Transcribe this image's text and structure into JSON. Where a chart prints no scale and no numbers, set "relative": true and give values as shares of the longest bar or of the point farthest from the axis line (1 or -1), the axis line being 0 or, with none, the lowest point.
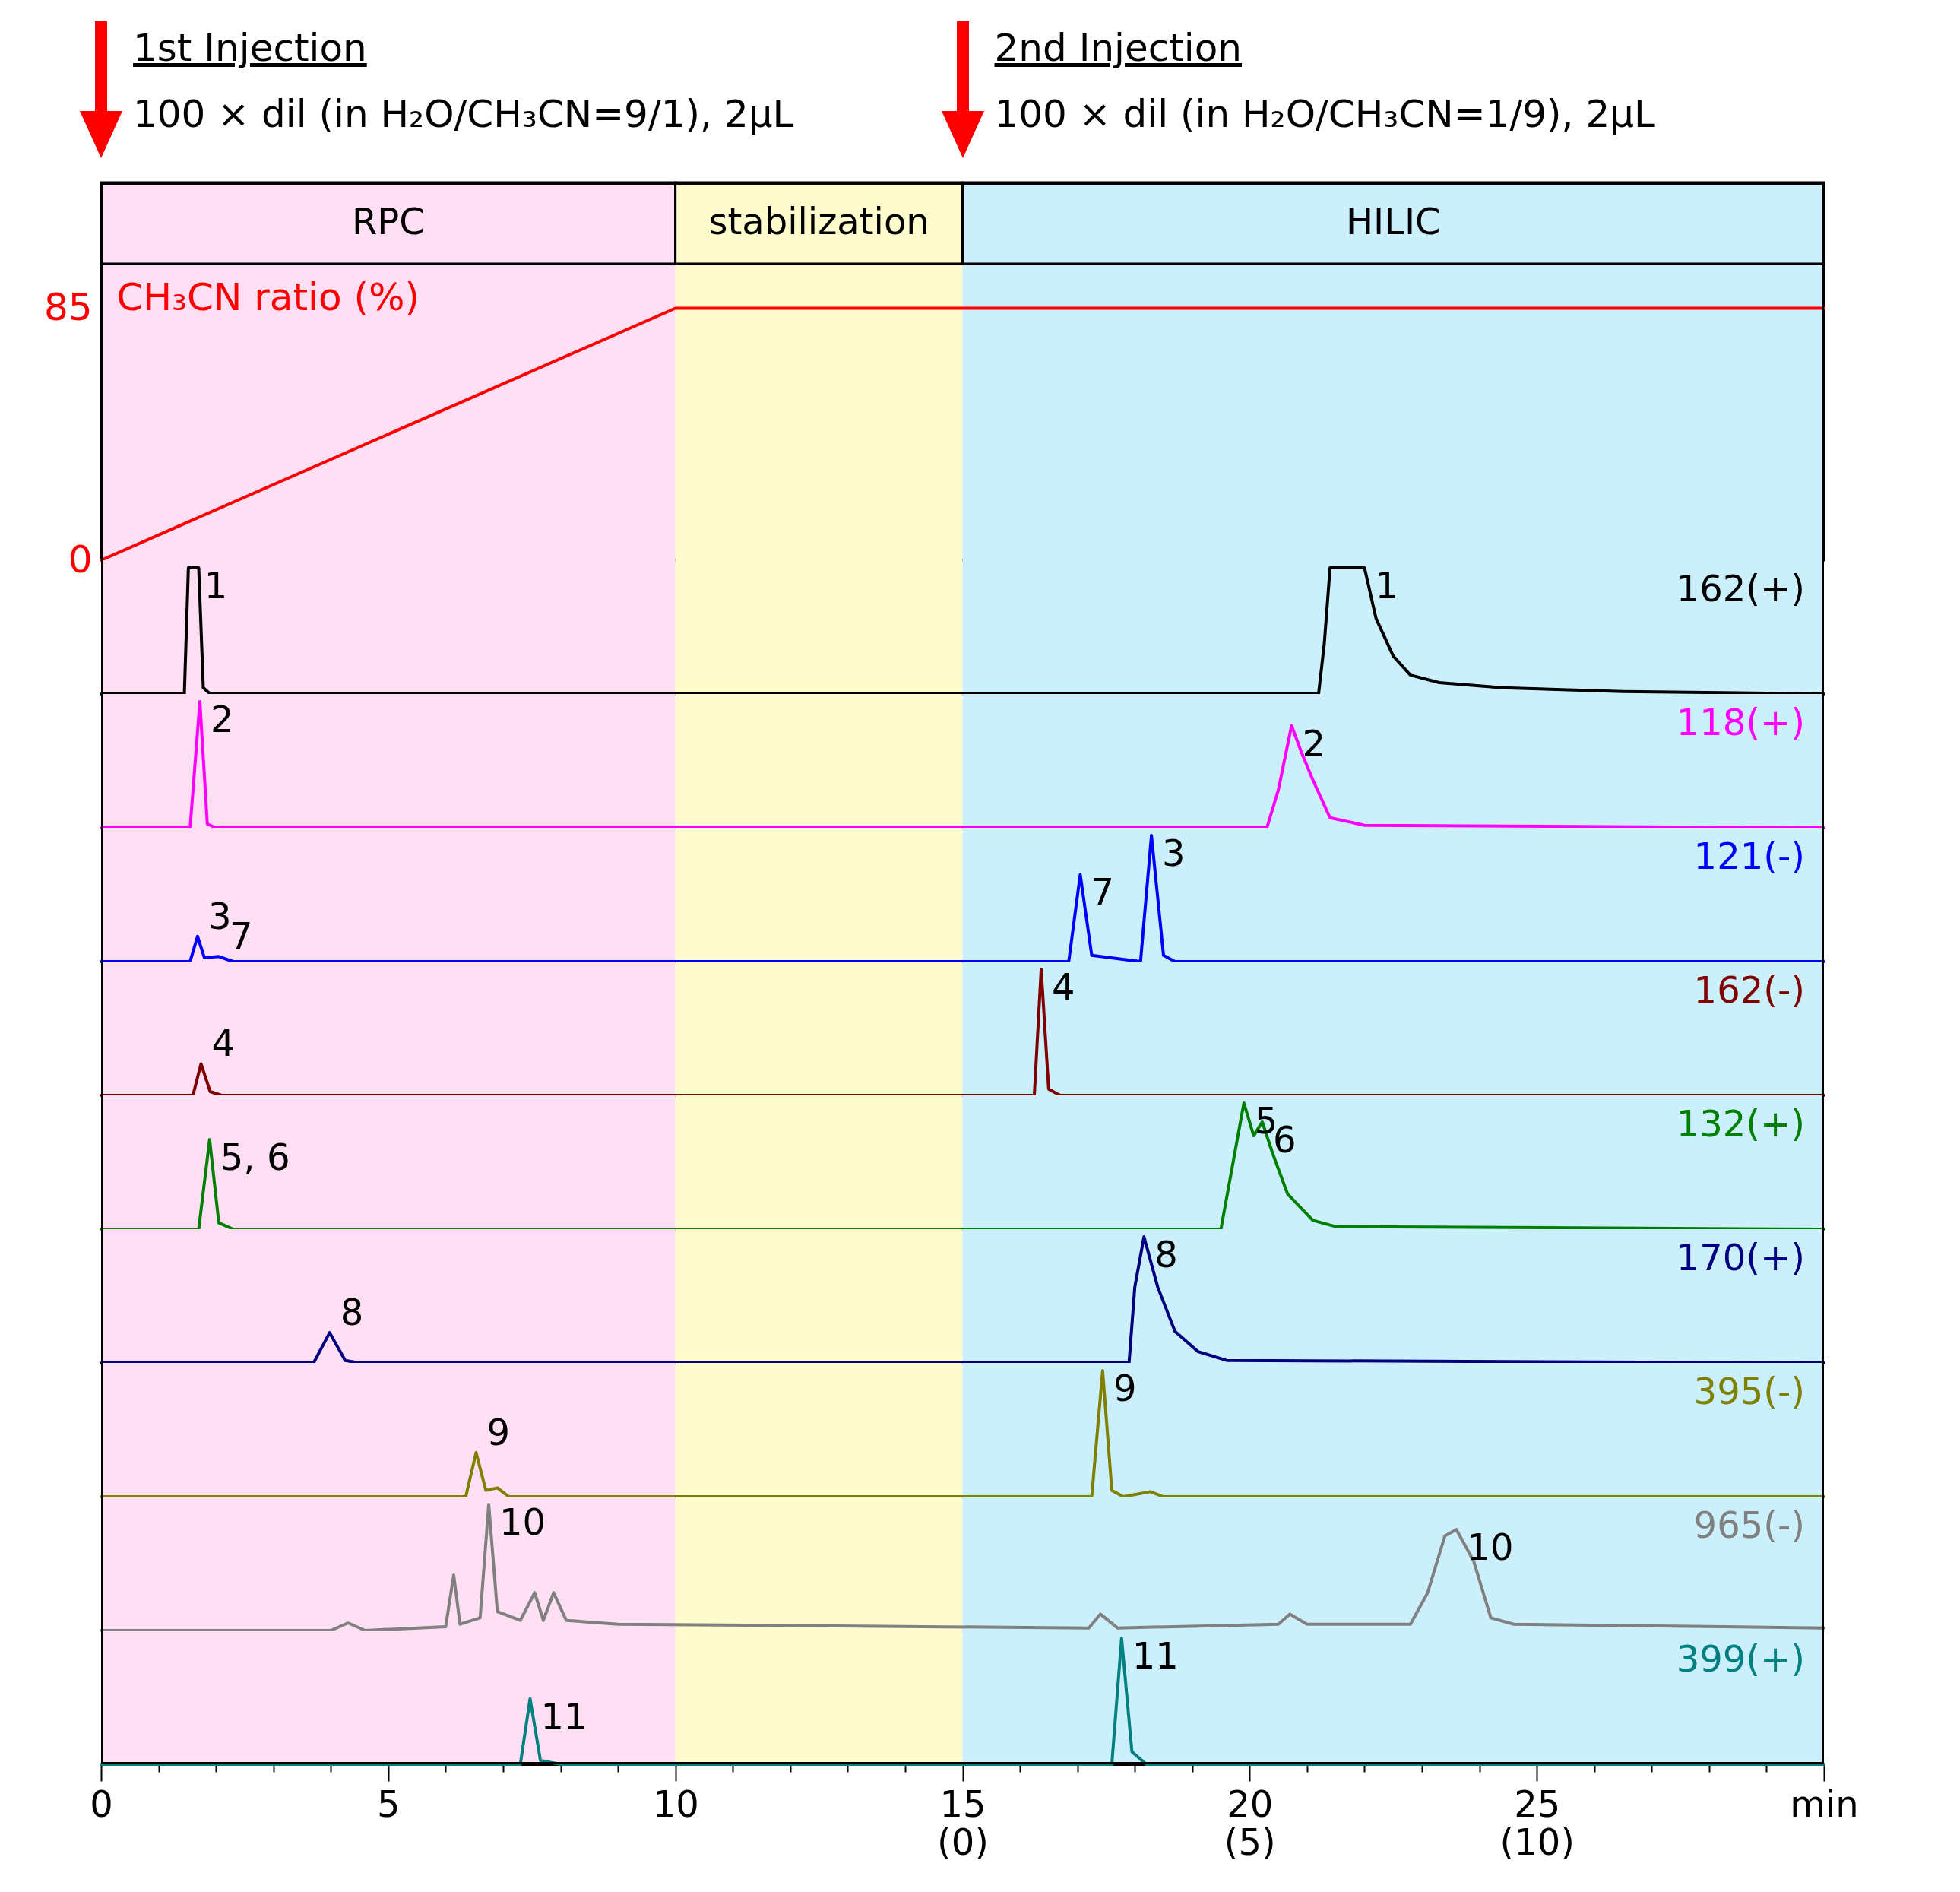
{
  "chart_data": [
    {
      "type": "line",
      "xlim": [
        0,
        30
      ],
      "ylim": [
        0,
        100
      ],
      "yticks": [
        0,
        85
      ],
      "ylabel": "CH₃CN ratio (%)",
      "tick_labels": "y",
      "bands": [
        {
          "axis": "x",
          "from": 0,
          "to": 10,
          "label": "RPC",
          "color": "#ffdff3"
        },
        {
          "axis": "x",
          "from": 10,
          "to": 15,
          "label": "stabilization",
          "color": "#fefccc"
        },
        {
          "axis": "x",
          "from": 15,
          "to": 30,
          "label": "HILIC",
          "color": "#ccf0fb"
        }
      ],
      "annotations": [
        "1st Injection",
        "100 × dil (in H₂O/CH₃CN=9/1), 2µL",
        "2nd Injection",
        "100 × dil (in H₂O/CH₃CN=1/9), 2µL"
      ],
      "series": [
        {
          "color": "#ff0000",
          "x": [
            0,
            10,
            30
          ],
          "values": [
            0,
            85,
            85
          ]
        }
      ]
    },
    {
      "type": "line",
      "relative": true,
      "xlim": [
        0,
        30
      ],
      "tick_labels": false,
      "bands": [
        {
          "axis": "x",
          "from": 0,
          "to": 10,
          "color": "#ffdff3"
        },
        {
          "axis": "x",
          "from": 10,
          "to": 15,
          "color": "#fefccc"
        },
        {
          "axis": "x",
          "from": 15,
          "to": 30,
          "color": "#ccf0fb"
        }
      ],
      "annotations": [
        {
          "text": "1",
          "x": 1.61,
          "y": 1
        },
        {
          "text": "1",
          "x": 22.0,
          "y": 1
        }
      ],
      "series": [
        {
          "name": "162(+)",
          "color": "#000000",
          "x": [
            0,
            1.45,
            1.52,
            1.7,
            1.78,
            1.9,
            21.2,
            21.3,
            21.4,
            22.0,
            22.2,
            22.5,
            22.8,
            23.3,
            24.4,
            26.5,
            30
          ],
          "values": [
            0,
            0,
            1,
            1,
            0.05,
            0,
            0,
            0.4,
            1,
            1,
            0.6,
            0.3,
            0.15,
            0.09,
            0.05,
            0.02,
            0
          ]
        }
      ]
    },
    {
      "type": "line",
      "relative": true,
      "xlim": [
        0,
        30
      ],
      "tick_labels": false,
      "bands": [
        {
          "axis": "x",
          "from": 0,
          "to": 10,
          "color": "#ffdff3"
        },
        {
          "axis": "x",
          "from": 10,
          "to": 15,
          "color": "#fefccc"
        },
        {
          "axis": "x",
          "from": 15,
          "to": 30,
          "color": "#ccf0fb"
        }
      ],
      "annotations": [
        {
          "text": "2",
          "x": 1.72,
          "y": 1
        },
        {
          "text": "2",
          "x": 20.73,
          "y": 0.81
        }
      ],
      "series": [
        {
          "name": "118(+)",
          "color": "#ff00ff",
          "x": [
            0,
            1.55,
            1.72,
            1.85,
            2.0,
            20.3,
            20.5,
            20.73,
            20.9,
            21.1,
            21.4,
            22,
            30
          ],
          "values": [
            0,
            0,
            1,
            0.03,
            0,
            0,
            0.3,
            0.81,
            0.6,
            0.38,
            0.08,
            0.02,
            0
          ]
        }
      ]
    },
    {
      "type": "line",
      "relative": true,
      "xlim": [
        0,
        30
      ],
      "tick_labels": false,
      "bands": [
        {
          "axis": "x",
          "from": 0,
          "to": 10,
          "color": "#ffdff3"
        },
        {
          "axis": "x",
          "from": 10,
          "to": 15,
          "color": "#fefccc"
        },
        {
          "axis": "x",
          "from": 15,
          "to": 30,
          "color": "#ccf0fb"
        }
      ],
      "annotations": [
        {
          "text": "3",
          "x": 1.68,
          "y": 0.2
        },
        {
          "text": "7",
          "x": 2.05,
          "y": 0.04
        },
        {
          "text": "7",
          "x": 17.05,
          "y": 0.69
        },
        {
          "text": "3",
          "x": 18.29,
          "y": 1
        }
      ],
      "series": [
        {
          "name": "121(-)",
          "color": "#0000ff",
          "x": [
            0,
            1.55,
            1.68,
            1.8,
            2.05,
            2.3,
            16.85,
            17.05,
            17.25,
            18.1,
            18.29,
            18.5,
            18.7,
            30
          ],
          "values": [
            0,
            0,
            0.2,
            0.03,
            0.04,
            0,
            0,
            0.69,
            0.05,
            0,
            1,
            0.05,
            0,
            0
          ]
        }
      ]
    },
    {
      "type": "line",
      "relative": true,
      "xlim": [
        0,
        30
      ],
      "tick_labels": false,
      "bands": [
        {
          "axis": "x",
          "from": 0,
          "to": 10,
          "color": "#ffdff3"
        },
        {
          "axis": "x",
          "from": 10,
          "to": 15,
          "color": "#fefccc"
        },
        {
          "axis": "x",
          "from": 15,
          "to": 30,
          "color": "#ccf0fb"
        }
      ],
      "annotations": [
        {
          "text": "4",
          "x": 1.74,
          "y": 0.25
        },
        {
          "text": "4",
          "x": 16.37,
          "y": 1
        }
      ],
      "series": [
        {
          "name": "162(-)",
          "color": "#800000",
          "x": [
            0,
            1.6,
            1.74,
            1.9,
            2.1,
            16.25,
            16.37,
            16.5,
            16.7,
            30
          ],
          "values": [
            0,
            0,
            0.25,
            0.03,
            0,
            0,
            1,
            0.05,
            0,
            0
          ]
        }
      ]
    },
    {
      "type": "line",
      "relative": true,
      "xlim": [
        0,
        30
      ],
      "tick_labels": false,
      "bands": [
        {
          "axis": "x",
          "from": 0,
          "to": 10,
          "color": "#ffdff3"
        },
        {
          "axis": "x",
          "from": 10,
          "to": 15,
          "color": "#fefccc"
        },
        {
          "axis": "x",
          "from": 15,
          "to": 30,
          "color": "#ccf0fb"
        }
      ],
      "annotations": [
        {
          "text": "5, 6",
          "x": 1.89,
          "y": 0.71
        },
        {
          "text": "5",
          "x": 19.9,
          "y": 1
        },
        {
          "text": "6",
          "x": 20.22,
          "y": 0.85
        }
      ],
      "series": [
        {
          "name": "132(+)",
          "color": "#008000",
          "x": [
            0,
            1.7,
            1.89,
            2.05,
            2.3,
            19.5,
            19.7,
            19.9,
            20.07,
            20.22,
            20.4,
            20.66,
            21.1,
            21.5,
            30
          ],
          "values": [
            0,
            0,
            0.71,
            0.05,
            0,
            0,
            0.5,
            1,
            0.74,
            0.85,
            0.6,
            0.28,
            0.07,
            0.02,
            0
          ]
        }
      ]
    },
    {
      "type": "line",
      "relative": true,
      "xlim": [
        0,
        30
      ],
      "tick_labels": false,
      "bands": [
        {
          "axis": "x",
          "from": 0,
          "to": 10,
          "color": "#ffdff3"
        },
        {
          "axis": "x",
          "from": 10,
          "to": 15,
          "color": "#fefccc"
        },
        {
          "axis": "x",
          "from": 15,
          "to": 30,
          "color": "#ccf0fb"
        }
      ],
      "annotations": [
        {
          "text": "8",
          "x": 3.98,
          "y": 0.24
        },
        {
          "text": "8",
          "x": 18.16,
          "y": 1
        }
      ],
      "series": [
        {
          "name": "170(+)",
          "color": "#000080",
          "x": [
            0,
            3.7,
            3.98,
            4.25,
            4.5,
            17.9,
            18.0,
            18.16,
            18.4,
            18.7,
            19.1,
            19.6,
            30
          ],
          "values": [
            0,
            0,
            0.24,
            0.02,
            0,
            0,
            0.6,
            1,
            0.6,
            0.25,
            0.09,
            0.02,
            0
          ]
        }
      ]
    },
    {
      "type": "line",
      "relative": true,
      "xlim": [
        0,
        30
      ],
      "tick_labels": false,
      "bands": [
        {
          "axis": "x",
          "from": 0,
          "to": 10,
          "color": "#ffdff3"
        },
        {
          "axis": "x",
          "from": 10,
          "to": 15,
          "color": "#fefccc"
        },
        {
          "axis": "x",
          "from": 15,
          "to": 30,
          "color": "#ccf0fb"
        }
      ],
      "annotations": [
        {
          "text": "9",
          "x": 6.53,
          "y": 0.35
        },
        {
          "text": "9",
          "x": 17.44,
          "y": 1
        }
      ],
      "series": [
        {
          "name": "395(-)",
          "color": "#808000",
          "x": [
            0,
            6.35,
            6.53,
            6.7,
            6.9,
            7.1,
            17.25,
            17.44,
            17.6,
            17.8,
            18.27,
            18.5,
            30
          ],
          "values": [
            0,
            0,
            0.35,
            0.05,
            0.07,
            0,
            0,
            1,
            0.05,
            0,
            0.04,
            0,
            0
          ]
        }
      ]
    },
    {
      "type": "line",
      "relative": true,
      "xlim": [
        0,
        30
      ],
      "tick_labels": false,
      "bands": [
        {
          "axis": "x",
          "from": 0,
          "to": 10,
          "color": "#ffdff3"
        },
        {
          "axis": "x",
          "from": 10,
          "to": 15,
          "color": "#fefccc"
        },
        {
          "axis": "x",
          "from": 15,
          "to": 30,
          "color": "#ccf0fb"
        }
      ],
      "annotations": [
        {
          "text": "10",
          "x": 6.75,
          "y": 1
        },
        {
          "text": "10",
          "x": 23.6,
          "y": 0.8
        }
      ],
      "series": [
        {
          "name": "965(-)",
          "color": "#808080",
          "x": [
            0,
            4.0,
            4.3,
            4.6,
            6.0,
            6.14,
            6.25,
            6.6,
            6.75,
            6.9,
            7.3,
            7.55,
            7.7,
            7.88,
            8.1,
            9,
            17.2,
            17.4,
            17.7,
            20.5,
            20.7,
            21,
            22.8,
            23.1,
            23.4,
            23.6,
            23.9,
            24.2,
            24.6,
            30
          ],
          "values": [
            0,
            0,
            0.06,
            0,
            0.03,
            0.44,
            0.05,
            0.1,
            1,
            0.15,
            0.08,
            0.3,
            0.08,
            0.3,
            0.08,
            0.05,
            0.02,
            0.13,
            0.02,
            0.05,
            0.13,
            0.05,
            0.05,
            0.3,
            0.75,
            0.8,
            0.55,
            0.1,
            0.05,
            0.02
          ]
        }
      ]
    },
    {
      "type": "line",
      "relative": true,
      "xlim": [
        0,
        30
      ],
      "xticks": [
        0,
        {
          "value": 1,
          "label": null
        },
        {
          "value": 2,
          "label": null
        },
        {
          "value": 3,
          "label": null
        },
        {
          "value": 4,
          "label": null
        },
        5,
        {
          "value": 6,
          "label": null
        },
        {
          "value": 7,
          "label": null
        },
        {
          "value": 8,
          "label": null
        },
        {
          "value": 9,
          "label": null
        },
        10,
        {
          "value": 11,
          "label": null
        },
        {
          "value": 12,
          "label": null
        },
        {
          "value": 13,
          "label": null
        },
        {
          "value": 14,
          "label": null
        },
        {
          "value": 15,
          "label": "15\n(0)"
        },
        {
          "value": 16,
          "label": null
        },
        {
          "value": 17,
          "label": null
        },
        {
          "value": 18,
          "label": null
        },
        {
          "value": 19,
          "label": null
        },
        {
          "value": 20,
          "label": "20\n(5)"
        },
        {
          "value": 21,
          "label": null
        },
        {
          "value": 22,
          "label": null
        },
        {
          "value": 23,
          "label": null
        },
        {
          "value": 24,
          "label": null
        },
        {
          "value": 25,
          "label": "25\n(10)"
        },
        {
          "value": 26,
          "label": null
        },
        {
          "value": 27,
          "label": null
        },
        {
          "value": 28,
          "label": null
        },
        {
          "value": 29,
          "label": null
        },
        {
          "value": 30,
          "label": "min"
        }
      ],
      "bands": [
        {
          "axis": "x",
          "from": 0,
          "to": 10,
          "color": "#ffdff3"
        },
        {
          "axis": "x",
          "from": 10,
          "to": 15,
          "color": "#fefccc"
        },
        {
          "axis": "x",
          "from": 15,
          "to": 30,
          "color": "#ccf0fb"
        }
      ],
      "annotations": [
        {
          "text": "11",
          "x": 7.47,
          "y": 0.52
        },
        {
          "text": "11",
          "x": 17.77,
          "y": 1
        }
      ],
      "series": [
        {
          "name": "399(+)",
          "color": "#008080",
          "x": [
            0,
            7.3,
            7.47,
            7.65,
            8,
            17.6,
            17.77,
            17.95,
            18.2,
            30
          ],
          "values": [
            0,
            0,
            0.52,
            0.03,
            0,
            0,
            1,
            0.1,
            0,
            0
          ]
        }
      ]
    }
  ]
}
